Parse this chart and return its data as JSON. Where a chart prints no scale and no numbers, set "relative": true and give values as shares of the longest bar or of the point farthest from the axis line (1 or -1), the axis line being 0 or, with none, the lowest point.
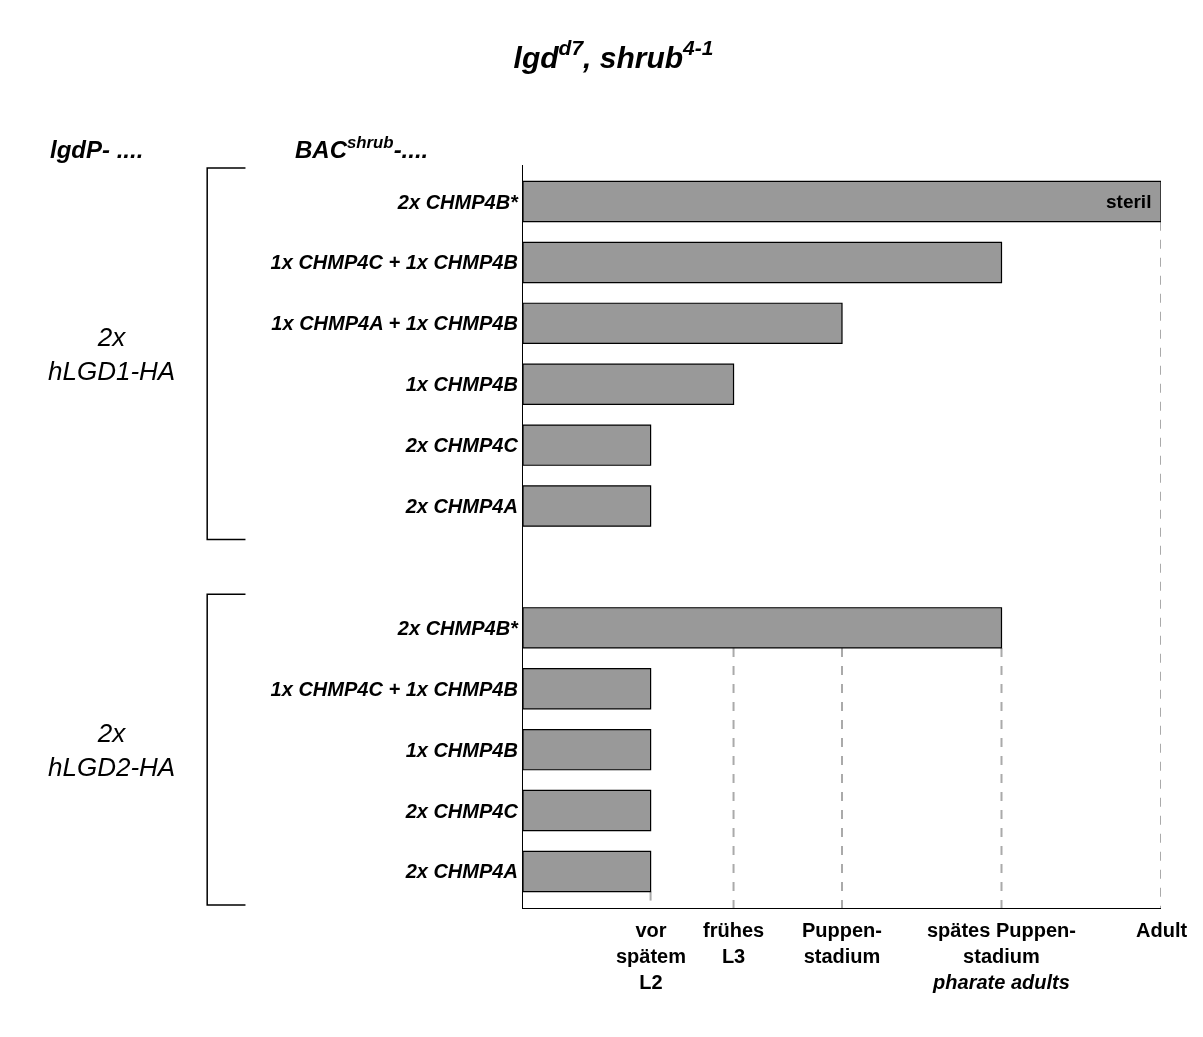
{
  "chart_data": {
    "type": "bar",
    "orientation": "horizontal",
    "title": "lgd$^{d7}$, shrub$^{4-1}$",
    "categories": [
      "2x CHMP4B*",
      "1x CHMP4C + 1x CHMP4B",
      "1x CHMP4A + 1x CHMP4B",
      "1x CHMP4B",
      "2x CHMP4C",
      "2x CHMP4A",
      null,
      "2x CHMP4B*",
      "1x CHMP4C + 1x CHMP4B",
      "1x CHMP4B",
      "2x CHMP4C",
      "2x CHMP4A"
    ],
    "values": [
      1,
      0.75,
      0.5,
      0.33,
      0.2,
      0.2,
      null,
      0.75,
      0.2,
      0.2,
      0.2,
      0.2
    ],
    "color": "#999999",
    "relative": true,
    "ref_lines": [
      {
        "axis": "x",
        "value": 0.2,
        "label": "vor\nspätem\nL2",
        "color": "#aaaaaa",
        "line_style": "dashed"
      },
      {
        "axis": "x",
        "value": 0.33,
        "label": "frühes\nL3",
        "color": "#aaaaaa",
        "line_style": "dashed"
      },
      {
        "axis": "x",
        "value": 0.5,
        "label": "Puppen-\nstadium",
        "color": "#aaaaaa",
        "line_style": "dashed"
      },
      {
        "axis": "x",
        "value": 0.75,
        "label": "spätes Puppen-\nstadium\npharate adults",
        "color": "#aaaaaa",
        "line_style": "dashed"
      },
      {
        "axis": "x",
        "value": 1,
        "label": "Adult",
        "color": "#aaaaaa",
        "line_style": "dashed"
      }
    ],
    "annotations": [
      "lgdP- ....",
      "BAC$^{shrub}$-....",
      "2x\nhLGD1-HA",
      "2x\nhLGD2-HA",
      {
        "text": "steril",
        "x": 1
      }
    ]
  }
}
